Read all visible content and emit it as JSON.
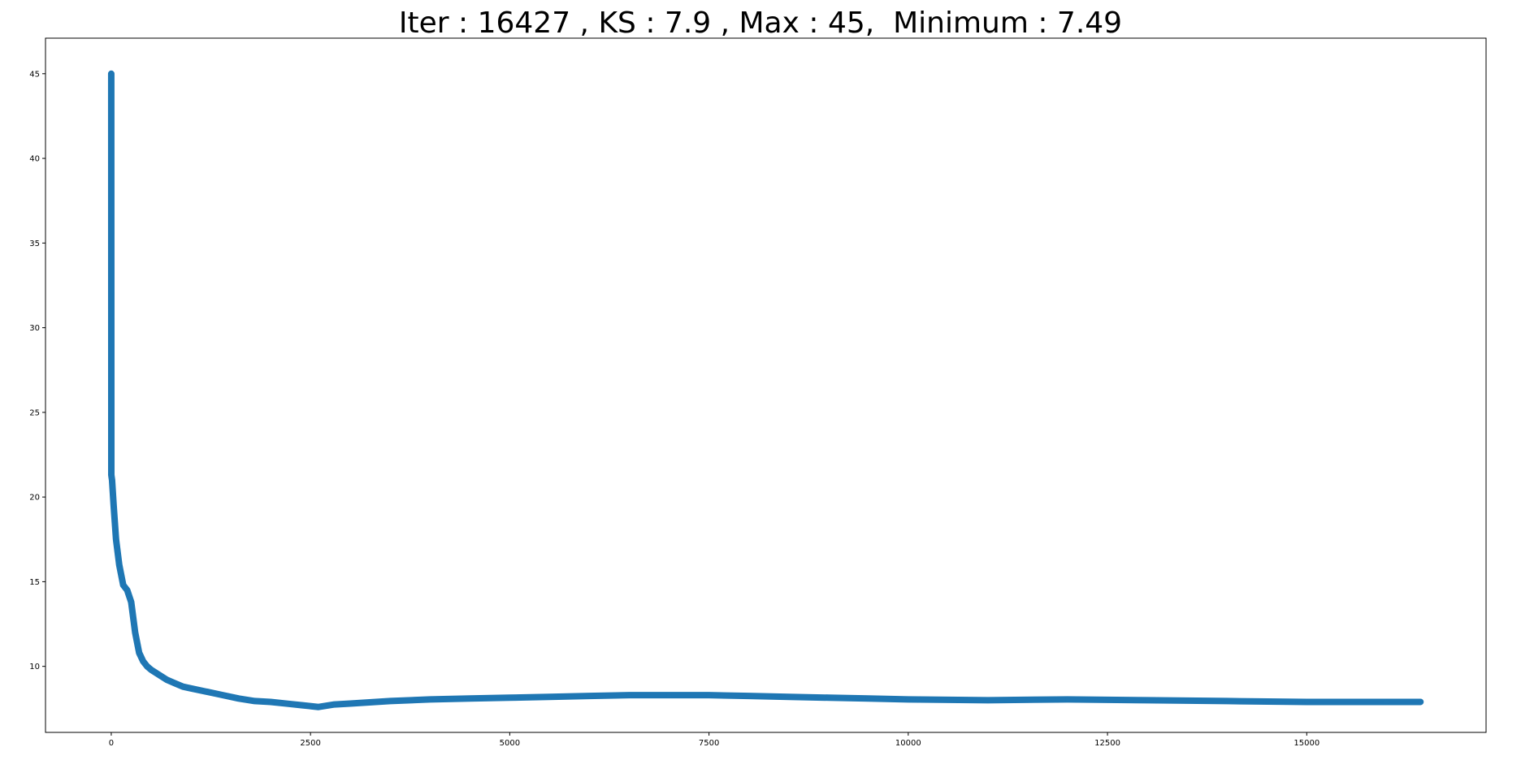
{
  "chart_data": {
    "type": "line",
    "title": "Iter : 16427 , KS : 7.9 , Max : 45,  Minimum : 7.49",
    "xlabel": "",
    "ylabel": "",
    "xlim": [
      -825,
      17250
    ],
    "ylim": [
      6.1,
      47.1
    ],
    "grid": false,
    "legend": "none",
    "x_ticks": [
      0,
      2500,
      5000,
      7500,
      10000,
      12500,
      15000
    ],
    "x_tick_labels": [
      "0",
      "2500",
      "5000",
      "7500",
      "10000",
      "12500",
      "15000"
    ],
    "y_ticks": [
      10,
      15,
      20,
      25,
      30,
      35,
      40,
      45
    ],
    "y_tick_labels": [
      "10",
      "15",
      "20",
      "25",
      "30",
      "35",
      "40",
      "45"
    ],
    "series": [
      {
        "name": "KS",
        "color": "#1f77b4",
        "x": [
          0,
          1,
          10,
          30,
          60,
          100,
          150,
          200,
          250,
          300,
          350,
          400,
          450,
          500,
          600,
          700,
          800,
          900,
          1000,
          1200,
          1400,
          1600,
          1800,
          2000,
          2200,
          2400,
          2600,
          2800,
          3000,
          3500,
          4000,
          4500,
          5000,
          5500,
          6000,
          6500,
          7000,
          7500,
          8000,
          8500,
          9000,
          9500,
          10000,
          11000,
          12000,
          13000,
          14000,
          15000,
          16000,
          16427
        ],
        "y": [
          45,
          21.3,
          21.0,
          19.5,
          17.5,
          16.0,
          14.8,
          14.5,
          13.8,
          12.0,
          10.8,
          10.3,
          10.0,
          9.8,
          9.5,
          9.2,
          9.0,
          8.8,
          8.7,
          8.5,
          8.3,
          8.1,
          7.95,
          7.9,
          7.8,
          7.7,
          7.6,
          7.75,
          7.8,
          7.95,
          8.05,
          8.1,
          8.15,
          8.2,
          8.25,
          8.3,
          8.3,
          8.3,
          8.25,
          8.2,
          8.15,
          8.1,
          8.05,
          8.0,
          8.05,
          8.0,
          7.95,
          7.9,
          7.9,
          7.9
        ]
      }
    ]
  }
}
